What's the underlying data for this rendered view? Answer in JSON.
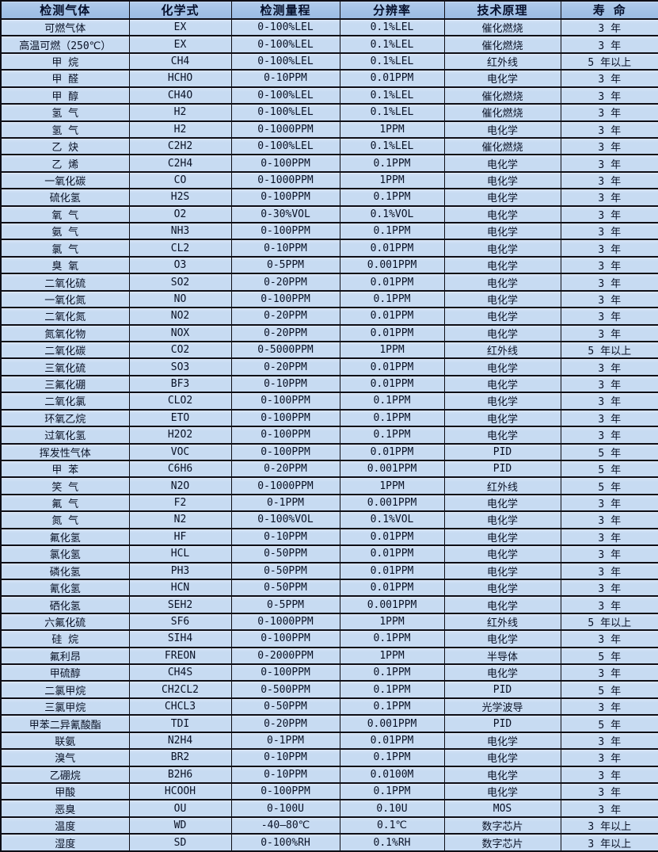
{
  "table": {
    "title": "gas-detector-sensor-specifications",
    "columns": [
      "检测气体",
      "化学式",
      "检测量程",
      "分辨率",
      "技术原理",
      "寿  命"
    ],
    "column_keys": [
      "gas-name",
      "formula",
      "range",
      "resolution",
      "principle",
      "lifespan"
    ],
    "rows": [
      [
        "可燃气体",
        "EX",
        "0-100%LEL",
        "0.1%LEL",
        "催化燃烧",
        "3 年"
      ],
      [
        "高温可燃（250℃）",
        "EX",
        "0-100%LEL",
        "0.1%LEL",
        "催化燃烧",
        "3 年"
      ],
      [
        "甲 烷",
        "CH4",
        "0-100%LEL",
        "0.1%LEL",
        "红外线",
        "5 年以上"
      ],
      [
        "甲 醛",
        "HCHO",
        "0-10PPM",
        "0.01PPM",
        "电化学",
        "3 年"
      ],
      [
        "甲 醇",
        "CH4O",
        "0-100%LEL",
        "0.1%LEL",
        "催化燃烧",
        "3 年"
      ],
      [
        "氢 气",
        "H2",
        "0-100%LEL",
        "0.1%LEL",
        "催化燃烧",
        "3 年"
      ],
      [
        "氢 气",
        "H2",
        "0-1000PPM",
        "1PPM",
        "电化学",
        "3 年"
      ],
      [
        "乙 炔",
        "C2H2",
        "0-100%LEL",
        "0.1%LEL",
        "催化燃烧",
        "3 年"
      ],
      [
        "乙 烯",
        "C2H4",
        "0-100PPM",
        "0.1PPM",
        "电化学",
        "3 年"
      ],
      [
        "一氧化碳",
        "CO",
        "0-1000PPM",
        "1PPM",
        "电化学",
        "3 年"
      ],
      [
        "硫化氢",
        "H2S",
        "0-100PPM",
        "0.1PPM",
        "电化学",
        "3 年"
      ],
      [
        "氧 气",
        "O2",
        "0-30%VOL",
        "0.1%VOL",
        "电化学",
        "3 年"
      ],
      [
        "氨 气",
        "NH3",
        "0-100PPM",
        "0.1PPM",
        "电化学",
        "3 年"
      ],
      [
        "氯 气",
        "CL2",
        "0-10PPM",
        "0.01PPM",
        "电化学",
        "3 年"
      ],
      [
        "臭 氧",
        "O3",
        "0-5PPM",
        "0.001PPM",
        "电化学",
        "3 年"
      ],
      [
        "二氧化硫",
        "SO2",
        "0-20PPM",
        "0.01PPM",
        "电化学",
        "3 年"
      ],
      [
        "一氧化氮",
        "NO",
        "0-100PPM",
        "0.1PPM",
        "电化学",
        "3 年"
      ],
      [
        "二氧化氮",
        "NO2",
        "0-20PPM",
        "0.01PPM",
        "电化学",
        "3 年"
      ],
      [
        "氮氧化物",
        "NOX",
        "0-20PPM",
        "0.01PPM",
        "电化学",
        "3 年"
      ],
      [
        "二氧化碳",
        "CO2",
        "0-5000PPM",
        "1PPM",
        "红外线",
        "5 年以上"
      ],
      [
        "三氧化硫",
        "SO3",
        "0-20PPM",
        "0.01PPM",
        "电化学",
        "3 年"
      ],
      [
        "三氟化硼",
        "BF3",
        "0-10PPM",
        "0.01PPM",
        "电化学",
        "3 年"
      ],
      [
        "二氧化氯",
        "CLO2",
        "0-100PPM",
        "0.1PPM",
        "电化学",
        "3 年"
      ],
      [
        "环氧乙烷",
        "ETO",
        "0-100PPM",
        "0.1PPM",
        "电化学",
        "3 年"
      ],
      [
        "过氧化氢",
        "H2O2",
        "0-100PPM",
        "0.1PPM",
        "电化学",
        "3 年"
      ],
      [
        "挥发性气体",
        "VOC",
        "0-100PPM",
        "0.01PPM",
        "PID",
        "5 年"
      ],
      [
        "甲 苯",
        "C6H6",
        "0-20PPM",
        "0.001PPM",
        "PID",
        "5 年"
      ],
      [
        "笑 气",
        "N2O",
        "0-1000PPM",
        "1PPM",
        "红外线",
        "5 年"
      ],
      [
        "氟 气",
        "F2",
        "0-1PPM",
        "0.001PPM",
        "电化学",
        "3 年"
      ],
      [
        "氮 气",
        "N2",
        "0-100%VOL",
        "0.1%VOL",
        "电化学",
        "3 年"
      ],
      [
        "氟化氢",
        "HF",
        "0-10PPM",
        "0.01PPM",
        "电化学",
        "3 年"
      ],
      [
        "氯化氢",
        "HCL",
        "0-50PPM",
        "0.01PPM",
        "电化学",
        "3 年"
      ],
      [
        "磷化氢",
        "PH3",
        "0-50PPM",
        "0.01PPM",
        "电化学",
        "3 年"
      ],
      [
        "氰化氢",
        "HCN",
        "0-50PPM",
        "0.01PPM",
        "电化学",
        "3 年"
      ],
      [
        "硒化氢",
        "SEH2",
        "0-5PPM",
        "0.001PPM",
        "电化学",
        "3 年"
      ],
      [
        "六氟化硫",
        "SF6",
        "0-1000PPM",
        "1PPM",
        "红外线",
        "5 年以上"
      ],
      [
        "硅 烷",
        "SIH4",
        "0-100PPM",
        "0.1PPM",
        "电化学",
        "3 年"
      ],
      [
        "氟利昂",
        "FREON",
        "0-2000PPM",
        "1PPM",
        "半导体",
        "5 年"
      ],
      [
        "甲硫醇",
        "CH4S",
        "0-100PPM",
        "0.1PPM",
        "电化学",
        "3 年"
      ],
      [
        "二氯甲烷",
        "CH2CL2",
        "0-500PPM",
        "0.1PPM",
        "PID",
        "5 年"
      ],
      [
        "三氯甲烷",
        "CHCL3",
        "0-50PPM",
        "0.1PPM",
        "光学波导",
        "3 年"
      ],
      [
        "甲苯二异氰酸酯",
        "TDI",
        "0-20PPM",
        "0.001PPM",
        "PID",
        "5 年"
      ],
      [
        "联氨",
        "N2H4",
        "0-1PPM",
        "0.01PPM",
        "电化学",
        "3 年"
      ],
      [
        "溴气",
        "BR2",
        "0-10PPM",
        "0.1PPM",
        "电化学",
        "3 年"
      ],
      [
        "乙硼烷",
        "B2H6",
        "0-10PPM",
        "0.0100M",
        "电化学",
        "3 年"
      ],
      [
        "甲酸",
        "HCOOH",
        "0-100PPM",
        "0.1PPM",
        "电化学",
        "3 年"
      ],
      [
        "恶臭",
        "OU",
        "0-100U",
        "0.10U",
        "MOS",
        "3 年"
      ],
      [
        "温度",
        "WD",
        "-40—80℃",
        "0.1℃",
        "数字芯片",
        "3 年以上"
      ],
      [
        "湿度",
        "SD",
        "0-100%RH",
        "0.1%RH",
        "数字芯片",
        "3 年以上"
      ]
    ],
    "colors": {
      "header_background": "#a2c1e6",
      "row_background": "#c7dbf2",
      "border": "#0e0e16",
      "text": "#0a1226"
    }
  }
}
